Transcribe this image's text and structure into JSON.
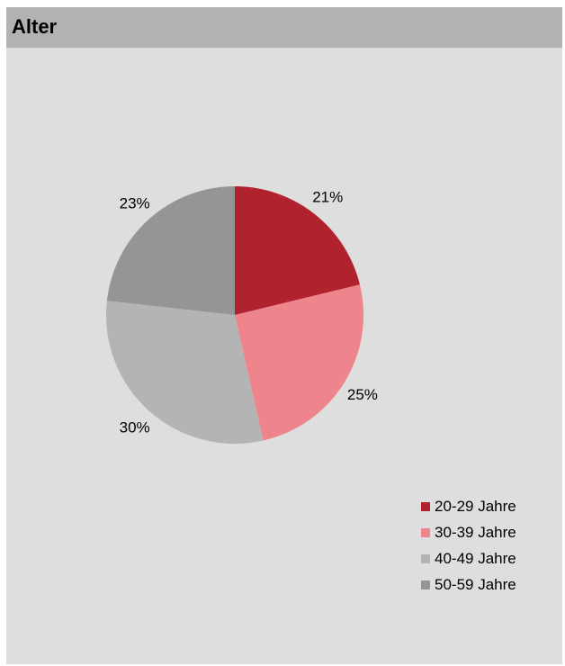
{
  "header": {
    "title": "Alter"
  },
  "chart_data": {
    "type": "pie",
    "title": "Alter",
    "categories": [
      "20-29 Jahre",
      "30-39 Jahre",
      "40-49 Jahre",
      "50-59 Jahre"
    ],
    "values": [
      21,
      25,
      30,
      23
    ],
    "labels": [
      "21%",
      "25%",
      "30%",
      "23%"
    ],
    "colors": [
      "#b0232e",
      "#ee858c",
      "#b4b4b4",
      "#959595"
    ],
    "legend_position": "bottom-right"
  }
}
